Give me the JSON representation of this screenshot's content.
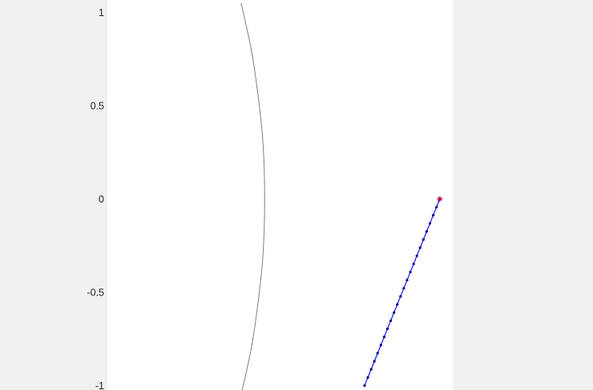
{
  "colors": {
    "figure_background": "#f0f0f0",
    "axes_background": "#ffffff",
    "curve": "#7f7f7f",
    "trajectory": "#0000ff",
    "trajectory_points": "#00007a",
    "endpoint_marker": "#c00040"
  },
  "chart_data": {
    "type": "line",
    "title": "",
    "xlabel": "",
    "ylabel": "",
    "ylim": [
      -1,
      1
    ],
    "xlim": [
      -0.93,
      0.93
    ],
    "y_ticks": [
      {
        "value": 1,
        "label": "1"
      },
      {
        "value": 0.5,
        "label": "0.5"
      },
      {
        "value": 0,
        "label": "0"
      },
      {
        "value": -0.5,
        "label": "-0.5"
      },
      {
        "value": -1,
        "label": "-1"
      }
    ],
    "x_ticks": [],
    "grid": false,
    "legend": "none",
    "series": [
      {
        "role": "curve",
        "style": "solid-line",
        "points": [
          {
            "x": -0.21,
            "y": 1.05
          },
          {
            "x": -0.155,
            "y": 0.8
          },
          {
            "x": -0.118,
            "y": 0.55
          },
          {
            "x": -0.092,
            "y": 0.3
          },
          {
            "x": -0.083,
            "y": 0.0
          },
          {
            "x": -0.092,
            "y": -0.3
          },
          {
            "x": -0.118,
            "y": -0.55
          },
          {
            "x": -0.155,
            "y": -0.8
          },
          {
            "x": -0.21,
            "y": -1.05
          }
        ]
      },
      {
        "role": "trajectory",
        "style": "line-with-dots",
        "start": {
          "x": 0.455,
          "y": -1.0
        },
        "end": {
          "x": 0.86,
          "y": 0.0
        },
        "num_points": 24
      },
      {
        "role": "endpoint",
        "style": "star-marker",
        "points": [
          {
            "x": 0.86,
            "y": 0.0
          }
        ]
      }
    ]
  }
}
